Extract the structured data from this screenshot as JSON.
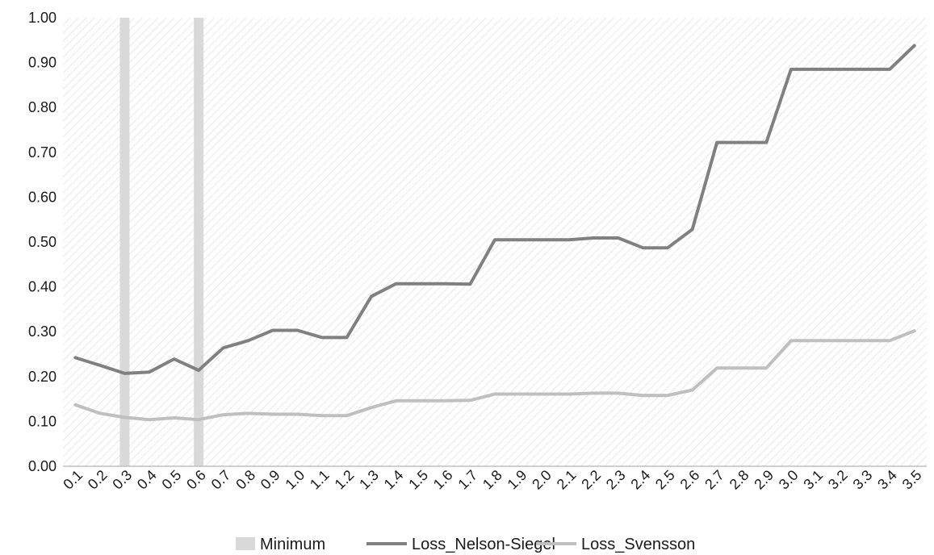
{
  "chart_data": {
    "type": "line",
    "title": "",
    "xlabel": "",
    "ylabel": "",
    "categories": [
      "0.1",
      "0.2",
      "0.3",
      "0.4",
      "0.5",
      "0.6",
      "0.7",
      "0.8",
      "0.9",
      "1.0",
      "1.1",
      "1.2",
      "1.3",
      "1.4",
      "1.5",
      "1.6",
      "1.7",
      "1.8",
      "1.9",
      "2.0",
      "2.1",
      "2.2",
      "2.3",
      "2.4",
      "2.5",
      "2.6",
      "2.7",
      "2.8",
      "2.9",
      "3.0",
      "3.1",
      "3.2",
      "3.3",
      "3.4",
      "3.5"
    ],
    "ylim": [
      0,
      1.0
    ],
    "yticks": [
      "0.00",
      "0.10",
      "0.20",
      "0.30",
      "0.40",
      "0.50",
      "0.60",
      "0.70",
      "0.80",
      "0.90",
      "1.00"
    ],
    "grid": false,
    "legend_position": "bottom",
    "minimum_markers": [
      "0.3",
      "0.6"
    ],
    "series": [
      {
        "name": "Minimum",
        "kind": "vertical-band",
        "color": "#d9d9d9"
      },
      {
        "name": "Loss_Nelson-Siegel",
        "kind": "line",
        "color": "#808080",
        "values": [
          0.242,
          0.225,
          0.207,
          0.21,
          0.239,
          0.214,
          0.264,
          0.28,
          0.303,
          0.303,
          0.287,
          0.287,
          0.379,
          0.407,
          0.407,
          0.407,
          0.406,
          0.505,
          0.505,
          0.505,
          0.505,
          0.509,
          0.509,
          0.487,
          0.487,
          0.528,
          0.722,
          0.722,
          0.722,
          0.885,
          0.885,
          0.885,
          0.885,
          0.885,
          0.938
        ]
      },
      {
        "name": "Loss_Svensson",
        "kind": "line",
        "color": "#bfbfbf",
        "values": [
          0.137,
          0.118,
          0.109,
          0.104,
          0.108,
          0.104,
          0.115,
          0.118,
          0.116,
          0.116,
          0.113,
          0.113,
          0.131,
          0.146,
          0.146,
          0.146,
          0.147,
          0.161,
          0.161,
          0.161,
          0.161,
          0.163,
          0.163,
          0.158,
          0.158,
          0.17,
          0.219,
          0.219,
          0.219,
          0.28,
          0.28,
          0.28,
          0.28,
          0.28,
          0.302
        ]
      }
    ],
    "colors": {
      "axis": "#bfbfbf",
      "hatch": "#d9d9d9",
      "text": "#1a1a1a"
    }
  }
}
